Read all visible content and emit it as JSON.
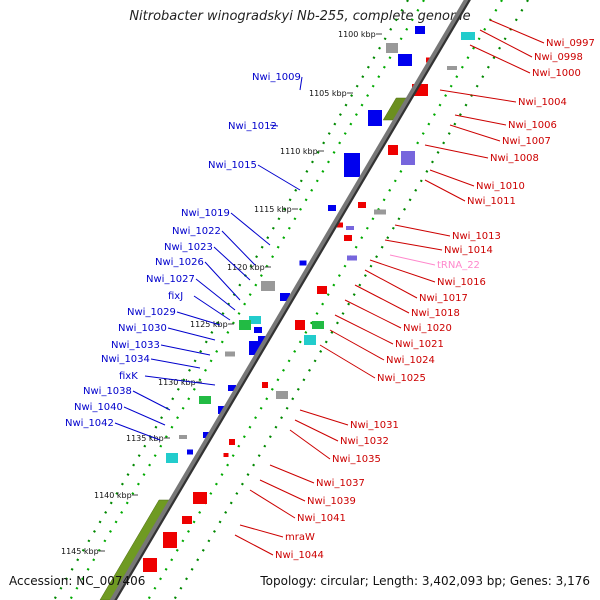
{
  "title": "Nitrobacter winogradskyi Nb-255, complete genome",
  "footer": {
    "accession": "Accession: NC_007406",
    "topology": "Topology: circular; Length: 3,402,093 bp; Genes: 3,176"
  },
  "colors": {
    "backbone": "#777777",
    "forward_label": "#0000cc",
    "reverse_label": "#cc0000",
    "trna_label": "#ff88cc",
    "cds_forward": "#0000ee",
    "cds_reverse": "#ee0000",
    "cog_green": "#669900",
    "gc_skew": "#008800"
  },
  "ticks": [
    "1100 kbp",
    "1105 kbp",
    "1110 kbp",
    "1115 kbp",
    "1120 kbp",
    "1125 kbp",
    "1130 kbp",
    "1135 kbp",
    "1140 kbp",
    "1145 kbp"
  ],
  "forward_genes": [
    "Nwi_1009",
    "Nwi_1012",
    "Nwi_1015",
    "Nwi_1019",
    "Nwi_1022",
    "Nwi_1023",
    "Nwi_1026",
    "Nwi_1027",
    "fixJ",
    "Nwi_1029",
    "Nwi_1030",
    "Nwi_1033",
    "Nwi_1034",
    "fixK",
    "Nwi_1038",
    "Nwi_1040",
    "Nwi_1042"
  ],
  "reverse_genes": [
    "Nwi_0997",
    "Nwi_0998",
    "Nwi_1000",
    "Nwi_1004",
    "Nwi_1006",
    "Nwi_1007",
    "Nwi_1008",
    "Nwi_1010",
    "Nwi_1011",
    "Nwi_1013",
    "Nwi_1014",
    "tRNA_22",
    "Nwi_1016",
    "Nwi_1017",
    "Nwi_1018",
    "Nwi_1020",
    "Nwi_1021",
    "Nwi_1024",
    "Nwi_1025",
    "Nwi_1031",
    "Nwi_1032",
    "Nwi_1035",
    "Nwi_1037",
    "Nwi_1039",
    "Nwi_1041",
    "mraW",
    "Nwi_1044"
  ]
}
